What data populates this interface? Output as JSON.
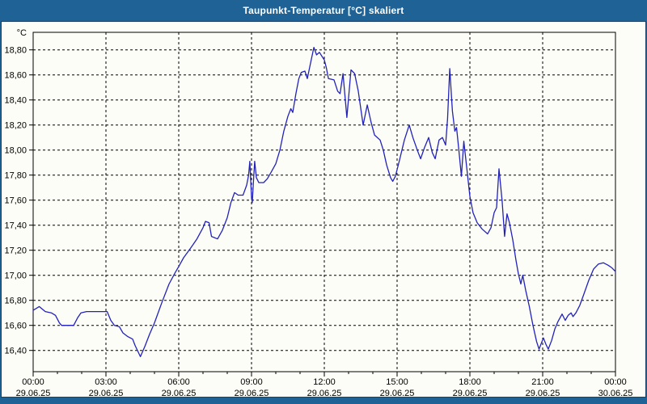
{
  "window": {
    "title": "Taupunkt-Temperatur [°C] skaliert"
  },
  "colors": {
    "titlebar_bg": "#1e6296",
    "titlebar_text": "#ffffff",
    "window_border": "#1a4067",
    "content_bg": "#fdfdf7",
    "grid": "#000000",
    "axis": "#000000",
    "line": "#2222bb"
  },
  "chart_data": {
    "type": "line",
    "title": "Taupunkt-Temperatur [°C] skaliert",
    "xlabel": "",
    "ylabel": "°C",
    "ylim": [
      16.23,
      18.94
    ],
    "xlim_hours": [
      0,
      24
    ],
    "grid": "dashed-both-axes",
    "legend": "none",
    "y_ticks": [
      {
        "value": 18.8,
        "label": "18,80"
      },
      {
        "value": 18.6,
        "label": "18,60"
      },
      {
        "value": 18.4,
        "label": "18,40"
      },
      {
        "value": 18.2,
        "label": "18,20"
      },
      {
        "value": 18.0,
        "label": "18,00"
      },
      {
        "value": 17.8,
        "label": "17,80"
      },
      {
        "value": 17.6,
        "label": "17,60"
      },
      {
        "value": 17.4,
        "label": "17,40"
      },
      {
        "value": 17.2,
        "label": "17,20"
      },
      {
        "value": 17.0,
        "label": "17,00"
      },
      {
        "value": 16.8,
        "label": "16,80"
      },
      {
        "value": 16.6,
        "label": "16,60"
      },
      {
        "value": 16.4,
        "label": "16,40"
      }
    ],
    "x_ticks": [
      {
        "hour": 0,
        "time": "00:00",
        "date": "29.06.25"
      },
      {
        "hour": 3,
        "time": "03:00",
        "date": "29.06.25"
      },
      {
        "hour": 6,
        "time": "06:00",
        "date": "29.06.25"
      },
      {
        "hour": 9,
        "time": "09:00",
        "date": "29.06.25"
      },
      {
        "hour": 12,
        "time": "12:00",
        "date": "29.06.25"
      },
      {
        "hour": 15,
        "time": "15:00",
        "date": "29.06.25"
      },
      {
        "hour": 18,
        "time": "18:00",
        "date": "29.06.25"
      },
      {
        "hour": 21,
        "time": "21:00",
        "date": "29.06.25"
      },
      {
        "hour": 24,
        "time": "00:00",
        "date": "30.06.25"
      }
    ],
    "x_minor_tick_every_hours": 1,
    "series": [
      {
        "name": "Taupunkt-Temperatur",
        "color": "#2222bb",
        "points": [
          [
            0,
            16.72
          ],
          [
            0.25,
            16.75
          ],
          [
            0.5,
            16.71
          ],
          [
            0.75,
            16.7
          ],
          [
            0.92,
            16.68
          ],
          [
            1.08,
            16.62
          ],
          [
            1.17,
            16.6
          ],
          [
            1.67,
            16.6
          ],
          [
            1.83,
            16.66
          ],
          [
            1.97,
            16.7
          ],
          [
            2.2,
            16.71
          ],
          [
            3.05,
            16.71
          ],
          [
            3.2,
            16.64
          ],
          [
            3.35,
            16.6
          ],
          [
            3.55,
            16.59
          ],
          [
            3.7,
            16.54
          ],
          [
            3.9,
            16.51
          ],
          [
            4.1,
            16.49
          ],
          [
            4.2,
            16.44
          ],
          [
            4.42,
            16.35
          ],
          [
            4.6,
            16.43
          ],
          [
            4.8,
            16.53
          ],
          [
            5,
            16.62
          ],
          [
            5.3,
            16.78
          ],
          [
            5.6,
            16.93
          ],
          [
            5.85,
            17.02
          ],
          [
            6,
            17.07
          ],
          [
            6.2,
            17.14
          ],
          [
            6.5,
            17.22
          ],
          [
            6.75,
            17.29
          ],
          [
            7,
            17.38
          ],
          [
            7.1,
            17.43
          ],
          [
            7.25,
            17.42
          ],
          [
            7.35,
            17.31
          ],
          [
            7.6,
            17.29
          ],
          [
            7.8,
            17.36
          ],
          [
            8,
            17.46
          ],
          [
            8.15,
            17.58
          ],
          [
            8.3,
            17.66
          ],
          [
            8.45,
            17.64
          ],
          [
            8.65,
            17.64
          ],
          [
            8.8,
            17.72
          ],
          [
            8.88,
            17.8
          ],
          [
            8.93,
            17.91
          ],
          [
            9,
            17.62
          ],
          [
            9.03,
            17.58
          ],
          [
            9.08,
            17.75
          ],
          [
            9.13,
            17.91
          ],
          [
            9.2,
            17.78
          ],
          [
            9.3,
            17.74
          ],
          [
            9.5,
            17.74
          ],
          [
            9.65,
            17.77
          ],
          [
            9.8,
            17.82
          ],
          [
            10,
            17.89
          ],
          [
            10.17,
            18
          ],
          [
            10.33,
            18.15
          ],
          [
            10.5,
            18.27
          ],
          [
            10.62,
            18.33
          ],
          [
            10.7,
            18.3
          ],
          [
            10.83,
            18.45
          ],
          [
            10.95,
            18.57
          ],
          [
            11.05,
            18.62
          ],
          [
            11.2,
            18.63
          ],
          [
            11.3,
            18.57
          ],
          [
            11.45,
            18.71
          ],
          [
            11.57,
            18.82
          ],
          [
            11.68,
            18.76
          ],
          [
            11.8,
            18.78
          ],
          [
            11.93,
            18.74
          ],
          [
            12,
            18.72
          ],
          [
            12.08,
            18.66
          ],
          [
            12.17,
            18.57
          ],
          [
            12.4,
            18.56
          ],
          [
            12.55,
            18.47
          ],
          [
            12.65,
            18.45
          ],
          [
            12.77,
            18.61
          ],
          [
            12.93,
            18.26
          ],
          [
            13.1,
            18.64
          ],
          [
            13.25,
            18.61
          ],
          [
            13.4,
            18.47
          ],
          [
            13.6,
            18.2
          ],
          [
            13.77,
            18.36
          ],
          [
            13.93,
            18.22
          ],
          [
            14.07,
            18.12
          ],
          [
            14.3,
            18.08
          ],
          [
            14.43,
            18
          ],
          [
            14.57,
            17.88
          ],
          [
            14.73,
            17.78
          ],
          [
            14.82,
            17.75
          ],
          [
            14.93,
            17.79
          ],
          [
            15.1,
            17.92
          ],
          [
            15.3,
            18.08
          ],
          [
            15.5,
            18.2
          ],
          [
            15.65,
            18.1
          ],
          [
            15.85,
            17.99
          ],
          [
            15.97,
            17.93
          ],
          [
            16.13,
            18.02
          ],
          [
            16.3,
            18.1
          ],
          [
            16.45,
            17.98
          ],
          [
            16.57,
            17.93
          ],
          [
            16.73,
            18.08
          ],
          [
            16.87,
            18.1
          ],
          [
            17,
            18.04
          ],
          [
            17.08,
            18.25
          ],
          [
            17.17,
            18.65
          ],
          [
            17.28,
            18.31
          ],
          [
            17.38,
            18.15
          ],
          [
            17.45,
            18.18
          ],
          [
            17.55,
            17.99
          ],
          [
            17.65,
            17.79
          ],
          [
            17.75,
            18.07
          ],
          [
            17.87,
            17.86
          ],
          [
            18,
            17.63
          ],
          [
            18.13,
            17.5
          ],
          [
            18.3,
            17.42
          ],
          [
            18.5,
            17.37
          ],
          [
            18.73,
            17.33
          ],
          [
            18.87,
            17.38
          ],
          [
            19,
            17.5
          ],
          [
            19.1,
            17.54
          ],
          [
            19.2,
            17.85
          ],
          [
            19.33,
            17.59
          ],
          [
            19.43,
            17.31
          ],
          [
            19.53,
            17.49
          ],
          [
            19.63,
            17.42
          ],
          [
            19.77,
            17.28
          ],
          [
            19.9,
            17.12
          ],
          [
            20,
            17.01
          ],
          [
            20.1,
            16.93
          ],
          [
            20.18,
            17
          ],
          [
            20.3,
            16.88
          ],
          [
            20.45,
            16.75
          ],
          [
            20.6,
            16.6
          ],
          [
            20.75,
            16.47
          ],
          [
            20.85,
            16.41
          ],
          [
            21.03,
            16.5
          ],
          [
            21.13,
            16.45
          ],
          [
            21.23,
            16.41
          ],
          [
            21.37,
            16.48
          ],
          [
            21.5,
            16.57
          ],
          [
            21.63,
            16.63
          ],
          [
            21.8,
            16.69
          ],
          [
            21.93,
            16.64
          ],
          [
            22.05,
            16.68
          ],
          [
            22.17,
            16.7
          ],
          [
            22.25,
            16.67
          ],
          [
            22.37,
            16.7
          ],
          [
            22.53,
            16.76
          ],
          [
            22.7,
            16.85
          ],
          [
            22.9,
            16.96
          ],
          [
            23.1,
            17.05
          ],
          [
            23.3,
            17.09
          ],
          [
            23.5,
            17.1
          ],
          [
            23.7,
            17.08
          ],
          [
            23.85,
            17.06
          ],
          [
            24,
            17.03
          ]
        ]
      }
    ]
  }
}
